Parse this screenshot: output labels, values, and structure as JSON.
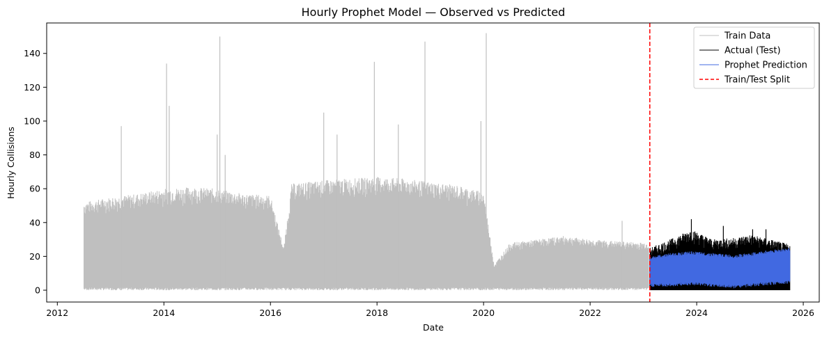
{
  "chart_data": {
    "type": "line",
    "title": "Hourly Prophet Model — Observed vs Predicted",
    "xlabel": "Date",
    "ylabel": "Hourly Collisions",
    "xlim": [
      2011.8,
      2026.3
    ],
    "ylim": [
      -7,
      158
    ],
    "xticks": [
      2012,
      2014,
      2016,
      2018,
      2020,
      2022,
      2024,
      2026
    ],
    "yticks": [
      0,
      20,
      40,
      60,
      80,
      100,
      120,
      140
    ],
    "grid": false,
    "legend_position": "top-right",
    "split_date": 2023.12,
    "series": [
      {
        "name": "Train Data",
        "color": "#bfbfbf",
        "style": "solid",
        "envelope": [
          {
            "x": 2012.5,
            "low": 0,
            "high": 52
          },
          {
            "x": 2013.0,
            "low": 0,
            "high": 55
          },
          {
            "x": 2013.5,
            "low": 0,
            "high": 57
          },
          {
            "x": 2014.0,
            "low": 0,
            "high": 60
          },
          {
            "x": 2014.5,
            "low": 0,
            "high": 61
          },
          {
            "x": 2015.0,
            "low": 0,
            "high": 60
          },
          {
            "x": 2015.5,
            "low": 0,
            "high": 57
          },
          {
            "x": 2016.0,
            "low": 0,
            "high": 56
          },
          {
            "x": 2016.25,
            "low": 0,
            "high": 25
          },
          {
            "x": 2016.4,
            "low": 0,
            "high": 63
          },
          {
            "x": 2017.0,
            "low": 0,
            "high": 65
          },
          {
            "x": 2017.5,
            "low": 0,
            "high": 66
          },
          {
            "x": 2018.0,
            "low": 0,
            "high": 67
          },
          {
            "x": 2018.5,
            "low": 0,
            "high": 66
          },
          {
            "x": 2019.0,
            "low": 0,
            "high": 64
          },
          {
            "x": 2019.5,
            "low": 0,
            "high": 62
          },
          {
            "x": 2020.0,
            "low": 0,
            "high": 58
          },
          {
            "x": 2020.2,
            "low": 0,
            "high": 15
          },
          {
            "x": 2020.5,
            "low": 0,
            "high": 28
          },
          {
            "x": 2021.0,
            "low": 0,
            "high": 30
          },
          {
            "x": 2021.5,
            "low": 0,
            "high": 32
          },
          {
            "x": 2022.0,
            "low": 0,
            "high": 30
          },
          {
            "x": 2022.5,
            "low": 0,
            "high": 29
          },
          {
            "x": 2023.1,
            "low": 0,
            "high": 28
          }
        ],
        "spikes": [
          {
            "x": 2013.2,
            "y": 97
          },
          {
            "x": 2014.05,
            "y": 134
          },
          {
            "x": 2014.1,
            "y": 109
          },
          {
            "x": 2015.05,
            "y": 150
          },
          {
            "x": 2015.0,
            "y": 92
          },
          {
            "x": 2015.15,
            "y": 80
          },
          {
            "x": 2017.0,
            "y": 105
          },
          {
            "x": 2017.25,
            "y": 92
          },
          {
            "x": 2017.95,
            "y": 135
          },
          {
            "x": 2018.4,
            "y": 98
          },
          {
            "x": 2018.9,
            "y": 147
          },
          {
            "x": 2020.05,
            "y": 152
          },
          {
            "x": 2019.95,
            "y": 100
          },
          {
            "x": 2022.6,
            "y": 41
          }
        ]
      },
      {
        "name": "Actual (Test)",
        "color": "#000000",
        "style": "solid",
        "envelope": [
          {
            "x": 2023.12,
            "low": 0,
            "high": 25
          },
          {
            "x": 2023.5,
            "low": 0,
            "high": 30
          },
          {
            "x": 2023.9,
            "low": 0,
            "high": 36
          },
          {
            "x": 2024.3,
            "low": 0,
            "high": 30
          },
          {
            "x": 2024.7,
            "low": 0,
            "high": 31
          },
          {
            "x": 2025.0,
            "low": 0,
            "high": 33
          },
          {
            "x": 2025.4,
            "low": 0,
            "high": 30
          },
          {
            "x": 2025.75,
            "low": 0,
            "high": 27
          }
        ],
        "spikes": [
          {
            "x": 2023.9,
            "y": 42
          },
          {
            "x": 2024.5,
            "y": 38
          },
          {
            "x": 2025.05,
            "y": 36
          },
          {
            "x": 2025.3,
            "y": 36
          }
        ]
      },
      {
        "name": "Prophet Prediction",
        "color": "#4169e1",
        "style": "solid",
        "envelope": [
          {
            "x": 2023.12,
            "low": 3,
            "high": 19
          },
          {
            "x": 2023.5,
            "low": 3,
            "high": 21
          },
          {
            "x": 2023.9,
            "low": 4,
            "high": 22
          },
          {
            "x": 2024.3,
            "low": 3,
            "high": 21
          },
          {
            "x": 2024.7,
            "low": 2,
            "high": 20
          },
          {
            "x": 2025.0,
            "low": 3,
            "high": 21
          },
          {
            "x": 2025.4,
            "low": 4,
            "high": 23
          },
          {
            "x": 2025.75,
            "low": 5,
            "high": 24
          }
        ]
      },
      {
        "name": "Train/Test Split",
        "color": "#ff0000",
        "style": "dashed"
      }
    ]
  }
}
